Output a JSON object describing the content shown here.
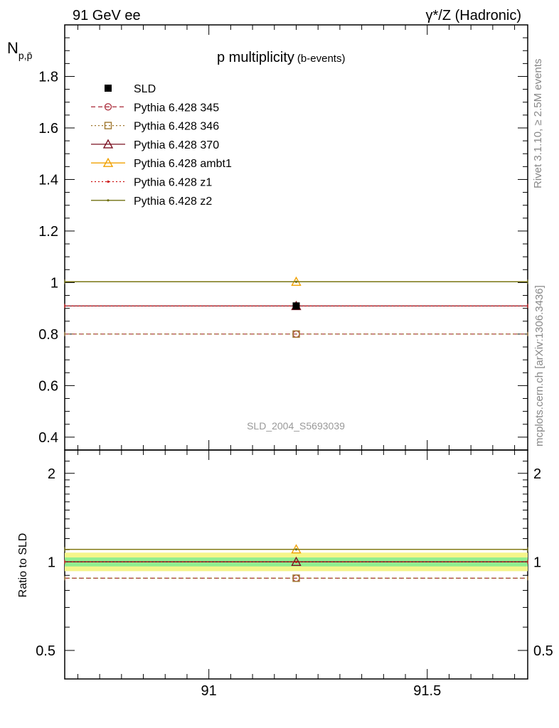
{
  "header": {
    "left": "91 GeV ee",
    "right": "γ*/Z (Hadronic)"
  },
  "side_text": {
    "rivet": "Rivet 3.1.10, ≥ 2.5M events",
    "mcplots": "mcplots.cern.ch [arXiv:1306.3436]"
  },
  "watermark": "SLD_2004_S5693039",
  "chart_data": [
    {
      "type": "scatter",
      "panel": "main",
      "title": "p multiplicity",
      "title_suffix": "(b-events)",
      "ylabel": "N",
      "ylabel_sub": "p,p̄",
      "xlim": [
        90.67,
        91.73
      ],
      "ylim": [
        0.35,
        2.0
      ],
      "yticks": [
        0.4,
        0.6,
        0.8,
        1,
        1.2,
        1.4,
        1.6,
        1.8
      ],
      "ytick_labels": [
        "0.4",
        "0.6",
        "0.8",
        "1",
        "1.2",
        "1.4",
        "1.6",
        "1.8"
      ],
      "bin": [
        90.67,
        91.73
      ],
      "x_center": 91.2,
      "legend_placement": "top-left",
      "series": [
        {
          "name": "SLD",
          "value": 0.909,
          "color": "#000000",
          "marker": "filled-square",
          "line": "none"
        },
        {
          "name": "Pythia 6.428 345",
          "value": 0.8,
          "color": "#b03a48",
          "marker": "open-circle",
          "line": "dashed"
        },
        {
          "name": "Pythia 6.428 346",
          "value": 0.8,
          "color": "#a07830",
          "marker": "open-square",
          "line": "dotted"
        },
        {
          "name": "Pythia 6.428 370",
          "value": 0.909,
          "color": "#7a1020",
          "marker": "open-triangle",
          "line": "solid"
        },
        {
          "name": "Pythia 6.428 ambt1",
          "value": 1.003,
          "color": "#f0a000",
          "marker": "open-triangle",
          "line": "solid"
        },
        {
          "name": "Pythia 6.428 z1",
          "value": 0.909,
          "color": "#cc1010",
          "marker": "dot",
          "line": "dotted"
        },
        {
          "name": "Pythia 6.428 z2",
          "value": 1.003,
          "color": "#707010",
          "marker": "dot",
          "line": "solid"
        }
      ]
    },
    {
      "type": "scatter",
      "panel": "ratio",
      "ylabel": "Ratio to SLD",
      "ylim": [
        0.4,
        2.4
      ],
      "yscale": "log",
      "yticks": [
        0.5,
        1,
        2
      ],
      "ytick_labels": [
        "0.5",
        "1",
        "2"
      ],
      "xticks": [
        91,
        91.5
      ],
      "xtick_labels": [
        "91",
        "91.5"
      ],
      "band_inner": [
        0.965,
        1.035
      ],
      "band_outer": [
        0.93,
        1.075
      ],
      "band_inner_color": "#90ee90",
      "band_outer_color": "#f5f58a",
      "series": [
        {
          "name": "Pythia 6.428 345",
          "value": 0.88
        },
        {
          "name": "Pythia 6.428 346",
          "value": 0.88
        },
        {
          "name": "Pythia 6.428 370",
          "value": 1.0
        },
        {
          "name": "Pythia 6.428 ambt1",
          "value": 1.103
        },
        {
          "name": "Pythia 6.428 z1",
          "value": 1.0
        },
        {
          "name": "Pythia 6.428 z2",
          "value": 1.103
        }
      ]
    }
  ]
}
